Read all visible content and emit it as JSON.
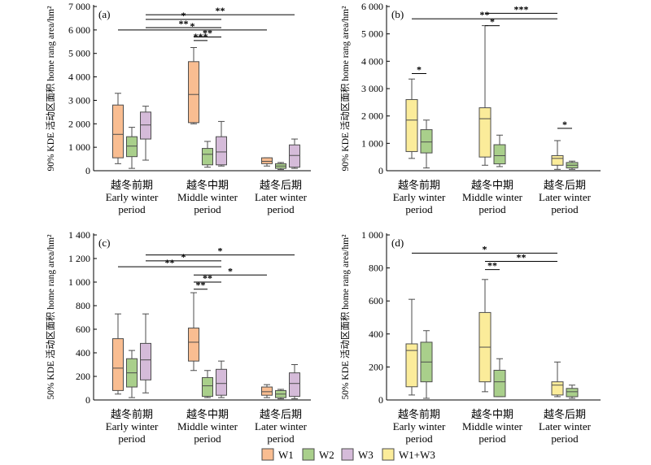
{
  "chart_data": [
    {
      "type": "boxplot",
      "panel_label": "(a)",
      "ylabel": "90% KDE 活动区面积 home rang area/hm²",
      "ylim": [
        0,
        7000
      ],
      "yticks": [
        0,
        1000,
        2000,
        3000,
        4000,
        5000,
        6000,
        7000
      ],
      "ytick_labels": [
        "0",
        "1 000",
        "2 000",
        "3 000",
        "4 000",
        "5 000",
        "6 000",
        "7 000"
      ],
      "categories": [
        {
          "zh": "越冬前期",
          "en1": "Early winter",
          "en2": "period"
        },
        {
          "zh": "越冬中期",
          "en1": "Middle winter",
          "en2": "period"
        },
        {
          "zh": "越冬后期",
          "en1": "Later winter",
          "en2": "period"
        }
      ],
      "boxes": [
        {
          "series": "W1",
          "cat": 0,
          "min": 300,
          "q1": 550,
          "median": 1550,
          "q3": 2800,
          "max": 3300
        },
        {
          "series": "W2",
          "cat": 0,
          "min": 100,
          "q1": 600,
          "median": 1050,
          "q3": 1450,
          "max": 1850
        },
        {
          "series": "W3",
          "cat": 0,
          "min": 450,
          "q1": 1350,
          "median": 1950,
          "q3": 2500,
          "max": 2750
        },
        {
          "series": "W1",
          "cat": 1,
          "min": 2000,
          "q1": 2050,
          "median": 3250,
          "q3": 4650,
          "max": 5250
        },
        {
          "series": "W2",
          "cat": 1,
          "min": 150,
          "q1": 250,
          "median": 700,
          "q3": 950,
          "max": 1250
        },
        {
          "series": "W3",
          "cat": 1,
          "min": 200,
          "q1": 250,
          "median": 800,
          "q3": 1450,
          "max": 2100
        },
        {
          "series": "W1",
          "cat": 2,
          "min": 200,
          "q1": 300,
          "median": 400,
          "q3": 550,
          "max": 550
        },
        {
          "series": "W2",
          "cat": 2,
          "min": 50,
          "q1": 100,
          "median": 200,
          "q3": 300,
          "max": 350
        },
        {
          "series": "W3",
          "cat": 2,
          "min": 100,
          "q1": 150,
          "median": 650,
          "q3": 1100,
          "max": 1350
        }
      ],
      "significance": [
        {
          "from_cat": 0,
          "from_series": 2,
          "to_cat": 2,
          "to_series": 2,
          "level": 6650,
          "label": "**"
        },
        {
          "from_cat": 0,
          "from_series": 2,
          "to_cat": 1,
          "to_series": 2,
          "level": 6450,
          "label": "*"
        },
        {
          "from_cat": 0,
          "from_series": 2,
          "to_cat": 1,
          "to_series": 2,
          "level": 6100,
          "label": "**"
        },
        {
          "from_cat": 0,
          "from_series": 0,
          "to_cat": 2,
          "to_series": 0,
          "level": 6000,
          "label": "*"
        },
        {
          "from_cat": 1,
          "from_series": 0,
          "to_cat": 1,
          "to_series": 2,
          "level": 5700,
          "label": "**"
        },
        {
          "from_cat": 1,
          "from_series": 0,
          "to_cat": 1,
          "to_series": 1,
          "level": 5550,
          "label": "***"
        }
      ]
    },
    {
      "type": "boxplot",
      "panel_label": "(b)",
      "ylabel": "90% KDE 活动区面积 home rang area/hm²",
      "ylim": [
        0,
        6000
      ],
      "yticks": [
        0,
        1000,
        2000,
        3000,
        4000,
        5000,
        6000
      ],
      "ytick_labels": [
        "0",
        "1 000",
        "2 000",
        "3 000",
        "4 000",
        "5 000",
        "6 000"
      ],
      "categories": [
        {
          "zh": "越冬前期",
          "en1": "Early winter",
          "en2": "period"
        },
        {
          "zh": "越冬中期",
          "en1": "Middle winter",
          "en2": "period"
        },
        {
          "zh": "越冬后期",
          "en1": "Later winter",
          "en2": "period"
        }
      ],
      "boxes": [
        {
          "series": "W1+W3",
          "cat": 0,
          "min": 450,
          "q1": 700,
          "median": 1850,
          "q3": 2600,
          "max": 3350
        },
        {
          "series": "W2",
          "cat": 0,
          "min": 100,
          "q1": 650,
          "median": 1050,
          "q3": 1500,
          "max": 1850
        },
        {
          "series": "W1+W3",
          "cat": 1,
          "min": 200,
          "q1": 500,
          "median": 1900,
          "q3": 2300,
          "max": 5300
        },
        {
          "series": "W2",
          "cat": 1,
          "min": 150,
          "q1": 250,
          "median": 550,
          "q3": 950,
          "max": 1300
        },
        {
          "series": "W1+W3",
          "cat": 2,
          "min": 50,
          "q1": 200,
          "median": 450,
          "q3": 550,
          "max": 1100
        },
        {
          "series": "W2",
          "cat": 2,
          "min": 50,
          "q1": 100,
          "median": 200,
          "q3": 300,
          "max": 350
        }
      ],
      "significance": [
        {
          "from_cat": 1,
          "from_series": 0,
          "to_cat": 2,
          "to_series": 0,
          "level": 5750,
          "label": "***"
        },
        {
          "from_cat": 0,
          "from_series": 0,
          "to_cat": 2,
          "to_series": 0,
          "level": 5550,
          "label": "**"
        },
        {
          "from_cat": 1,
          "from_series": 0,
          "to_cat": 1,
          "to_series": 1,
          "level": 5300,
          "label": "*"
        },
        {
          "from_cat": 0,
          "from_series": 0,
          "to_cat": 0,
          "to_series": 1,
          "level": 3550,
          "label": "*"
        },
        {
          "from_cat": 2,
          "from_series": 0,
          "to_cat": 2,
          "to_series": 1,
          "level": 1550,
          "label": "*"
        }
      ]
    },
    {
      "type": "boxplot",
      "panel_label": "(c)",
      "ylabel": "50% KDE 活动区面积 home rang area/hm²",
      "ylim": [
        0,
        1400
      ],
      "yticks": [
        0,
        200,
        400,
        600,
        800,
        1000,
        1200,
        1400
      ],
      "ytick_labels": [
        "0",
        "200",
        "400",
        "600",
        "800",
        "1 000",
        "1 200",
        "1 400"
      ],
      "categories": [
        {
          "zh": "越冬前期",
          "en1": "Early winter",
          "en2": "period"
        },
        {
          "zh": "越冬中期",
          "en1": "Middle winter",
          "en2": "period"
        },
        {
          "zh": "越冬后期",
          "en1": "Later winter",
          "en2": "period"
        }
      ],
      "boxes": [
        {
          "series": "W1",
          "cat": 0,
          "min": 50,
          "q1": 80,
          "median": 270,
          "q3": 520,
          "max": 730
        },
        {
          "series": "W2",
          "cat": 0,
          "min": 20,
          "q1": 110,
          "median": 230,
          "q3": 350,
          "max": 420
        },
        {
          "series": "W3",
          "cat": 0,
          "min": 60,
          "q1": 170,
          "median": 340,
          "q3": 480,
          "max": 730
        },
        {
          "series": "W1",
          "cat": 1,
          "min": 250,
          "q1": 330,
          "median": 490,
          "q3": 610,
          "max": 910
        },
        {
          "series": "W2",
          "cat": 1,
          "min": 20,
          "q1": 30,
          "median": 120,
          "q3": 190,
          "max": 250
        },
        {
          "series": "W3",
          "cat": 1,
          "min": 20,
          "q1": 40,
          "median": 140,
          "q3": 260,
          "max": 330
        },
        {
          "series": "W1",
          "cat": 2,
          "min": 20,
          "q1": 40,
          "median": 70,
          "q3": 110,
          "max": 130
        },
        {
          "series": "W2",
          "cat": 2,
          "min": 10,
          "q1": 20,
          "median": 50,
          "q3": 80,
          "max": 90
        },
        {
          "series": "W3",
          "cat": 2,
          "min": 10,
          "q1": 30,
          "median": 140,
          "q3": 230,
          "max": 300
        }
      ],
      "significance": [
        {
          "from_cat": 0,
          "from_series": 2,
          "to_cat": 2,
          "to_series": 2,
          "level": 1230,
          "label": "*"
        },
        {
          "from_cat": 0,
          "from_series": 2,
          "to_cat": 1,
          "to_series": 2,
          "level": 1180,
          "label": "*"
        },
        {
          "from_cat": 0,
          "from_series": 0,
          "to_cat": 1,
          "to_series": 2,
          "level": 1130,
          "label": "**"
        },
        {
          "from_cat": 1,
          "from_series": 0,
          "to_cat": 2,
          "to_series": 0,
          "level": 1060,
          "label": "*"
        },
        {
          "from_cat": 1,
          "from_series": 0,
          "to_cat": 1,
          "to_series": 2,
          "level": 1000,
          "label": "**"
        },
        {
          "from_cat": 1,
          "from_series": 0,
          "to_cat": 1,
          "to_series": 1,
          "level": 940,
          "label": "**"
        }
      ]
    },
    {
      "type": "boxplot",
      "panel_label": "(d)",
      "ylabel": "50% KDE 活动区面积 home rang area/hm²",
      "ylim": [
        0,
        1000
      ],
      "yticks": [
        0,
        200,
        400,
        600,
        800,
        1000
      ],
      "ytick_labels": [
        "0",
        "200",
        "400",
        "600",
        "800",
        "1 000"
      ],
      "categories": [
        {
          "zh": "越冬前期",
          "en1": "Early winter",
          "en2": "period"
        },
        {
          "zh": "越冬中期",
          "en1": "Middle winter",
          "en2": "period"
        },
        {
          "zh": "越冬后期",
          "en1": "Later winter",
          "en2": "period"
        }
      ],
      "boxes": [
        {
          "series": "W1+W3",
          "cat": 0,
          "min": 30,
          "q1": 80,
          "median": 300,
          "q3": 340,
          "max": 610
        },
        {
          "series": "W2",
          "cat": 0,
          "min": 10,
          "q1": 110,
          "median": 230,
          "q3": 350,
          "max": 420
        },
        {
          "series": "W1+W3",
          "cat": 1,
          "min": 50,
          "q1": 110,
          "median": 320,
          "q3": 530,
          "max": 730
        },
        {
          "series": "W2",
          "cat": 1,
          "min": 20,
          "q1": 20,
          "median": 110,
          "q3": 180,
          "max": 250
        },
        {
          "series": "W1+W3",
          "cat": 2,
          "min": 20,
          "q1": 30,
          "median": 90,
          "q3": 110,
          "max": 230
        },
        {
          "series": "W2",
          "cat": 2,
          "min": 10,
          "q1": 20,
          "median": 50,
          "q3": 70,
          "max": 90
        }
      ],
      "significance": [
        {
          "from_cat": 0,
          "from_series": 0,
          "to_cat": 2,
          "to_series": 0,
          "level": 890,
          "label": "*"
        },
        {
          "from_cat": 1,
          "from_series": 0,
          "to_cat": 2,
          "to_series": 0,
          "level": 840,
          "label": "**"
        },
        {
          "from_cat": 1,
          "from_series": 0,
          "to_cat": 1,
          "to_series": 1,
          "level": 790,
          "label": "**"
        }
      ]
    }
  ],
  "legend": {
    "placement": "bottom-center",
    "items": [
      {
        "name": "W1",
        "color": "#f9bd91"
      },
      {
        "name": "W2",
        "color": "#a9cf8b"
      },
      {
        "name": "W3",
        "color": "#d5bbd9"
      },
      {
        "name": "W1+W3",
        "color": "#fbec9a"
      }
    ]
  },
  "colors": {
    "W1": "#f9bd91",
    "W2": "#a9cf8b",
    "W3": "#d5bbd9",
    "W1+W3": "#fbec9a",
    "stroke": "#4d4d4d"
  }
}
